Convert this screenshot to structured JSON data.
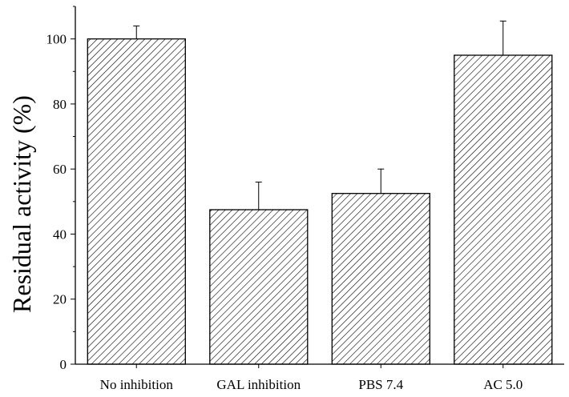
{
  "chart_data": {
    "type": "bar",
    "title": "",
    "xlabel": "",
    "ylabel": "Residual activity (%)",
    "categories": [
      "No inhibition",
      "GAL inhibition",
      "PBS 7.4",
      "AC 5.0"
    ],
    "values": [
      100,
      47.5,
      52.5,
      95
    ],
    "error_upper": [
      4,
      8.5,
      7.5,
      10.5
    ],
    "ylim": [
      0,
      110
    ],
    "yticks": [
      0,
      20,
      40,
      60,
      80,
      100
    ],
    "grid": false,
    "bar_fill": "hatched",
    "colors": {
      "bar_stroke": "#000000",
      "hatch": "#000000",
      "background": "#ffffff"
    }
  }
}
